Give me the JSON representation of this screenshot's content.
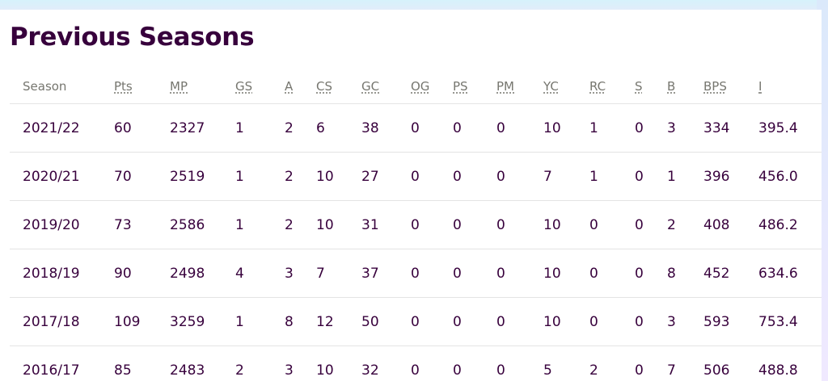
{
  "title": "Previous Seasons",
  "table": {
    "headers": [
      "Season",
      "Pts",
      "MP",
      "GS",
      "A",
      "CS",
      "GC",
      "OG",
      "PS",
      "PM",
      "YC",
      "RC",
      "S",
      "B",
      "BPS",
      "I"
    ],
    "rows": [
      [
        "2021/22",
        "60",
        "2327",
        "1",
        "2",
        "6",
        "38",
        "0",
        "0",
        "0",
        "10",
        "1",
        "0",
        "3",
        "334",
        "395.4"
      ],
      [
        "2020/21",
        "70",
        "2519",
        "1",
        "2",
        "10",
        "27",
        "0",
        "0",
        "0",
        "7",
        "1",
        "0",
        "1",
        "396",
        "456.0"
      ],
      [
        "2019/20",
        "73",
        "2586",
        "1",
        "2",
        "10",
        "31",
        "0",
        "0",
        "0",
        "10",
        "0",
        "0",
        "2",
        "408",
        "486.2"
      ],
      [
        "2018/19",
        "90",
        "2498",
        "4",
        "3",
        "7",
        "37",
        "0",
        "0",
        "0",
        "10",
        "0",
        "0",
        "8",
        "452",
        "634.6"
      ],
      [
        "2017/18",
        "109",
        "3259",
        "1",
        "8",
        "12",
        "50",
        "0",
        "0",
        "0",
        "10",
        "0",
        "0",
        "3",
        "593",
        "753.4"
      ],
      [
        "2016/17",
        "85",
        "2483",
        "2",
        "3",
        "10",
        "32",
        "0",
        "0",
        "0",
        "5",
        "2",
        "0",
        "7",
        "506",
        "488.8"
      ]
    ]
  },
  "colors": {
    "title": "#37003c",
    "header_text": "#76766f",
    "cell_text": "#37003c",
    "row_divider": "#e4e4e4"
  }
}
